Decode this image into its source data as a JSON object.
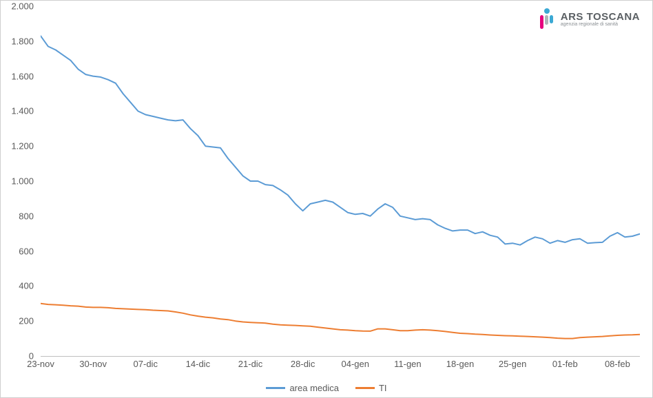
{
  "chart": {
    "type": "line",
    "background_color": "#ffffff",
    "border_color": "#cfcfcf",
    "grid_color": "#bfbfbf",
    "text_color": "#595959",
    "font_family": "Arial",
    "axis_fontsize": 13,
    "legend_fontsize": 13,
    "ylim": [
      0,
      2000
    ],
    "ytick_step": 200,
    "yticks": [
      "0",
      "200",
      "400",
      "600",
      "800",
      "1.000",
      "1.200",
      "1.400",
      "1.600",
      "1.800",
      "2.000"
    ],
    "xticks": [
      {
        "label": "23-nov",
        "index": 0
      },
      {
        "label": "30-nov",
        "index": 7
      },
      {
        "label": "07-dic",
        "index": 14
      },
      {
        "label": "14-dic",
        "index": 21
      },
      {
        "label": "21-dic",
        "index": 28
      },
      {
        "label": "28-dic",
        "index": 35
      },
      {
        "label": "04-gen",
        "index": 42
      },
      {
        "label": "11-gen",
        "index": 49
      },
      {
        "label": "18-gen",
        "index": 56
      },
      {
        "label": "25-gen",
        "index": 63
      },
      {
        "label": "01-feb",
        "index": 70
      },
      {
        "label": "08-feb",
        "index": 77
      }
    ],
    "n_points": 81,
    "series": [
      {
        "name": "area medica",
        "label": "area medica",
        "color": "#5b9bd5",
        "line_width": 2,
        "values": [
          1830,
          1770,
          1750,
          1720,
          1690,
          1640,
          1610,
          1600,
          1595,
          1580,
          1560,
          1500,
          1450,
          1400,
          1380,
          1370,
          1360,
          1350,
          1345,
          1350,
          1300,
          1260,
          1200,
          1195,
          1190,
          1130,
          1080,
          1030,
          1000,
          1000,
          980,
          975,
          950,
          920,
          870,
          830,
          870,
          880,
          890,
          880,
          850,
          820,
          810,
          815,
          800,
          840,
          870,
          850,
          800,
          790,
          780,
          785,
          780,
          750,
          730,
          715,
          720,
          720,
          700,
          710,
          690,
          680,
          640,
          645,
          635,
          660,
          680,
          670,
          645,
          660,
          650,
          665,
          670,
          645,
          648,
          650,
          685,
          705,
          680,
          685,
          698
        ]
      },
      {
        "name": "TI",
        "label": "TI",
        "color": "#ed7d31",
        "line_width": 2,
        "values": [
          300,
          295,
          293,
          290,
          287,
          285,
          280,
          278,
          278,
          276,
          272,
          270,
          268,
          266,
          265,
          262,
          260,
          258,
          252,
          245,
          235,
          228,
          222,
          218,
          212,
          208,
          200,
          195,
          192,
          190,
          188,
          182,
          178,
          176,
          175,
          172,
          170,
          165,
          160,
          155,
          150,
          148,
          145,
          143,
          142,
          155,
          155,
          150,
          145,
          145,
          148,
          150,
          148,
          145,
          140,
          135,
          130,
          128,
          125,
          123,
          120,
          118,
          116,
          115,
          113,
          112,
          110,
          108,
          105,
          102,
          100,
          100,
          105,
          108,
          110,
          112,
          115,
          118,
          120,
          121,
          123
        ]
      }
    ],
    "legend_items": [
      {
        "label": "area medica",
        "color": "#5b9bd5"
      },
      {
        "label": "TI",
        "color": "#ed7d31"
      }
    ]
  },
  "logo": {
    "title": "ARS TOSCANA",
    "subtitle": "agenzia regionale di sanità",
    "dot_color": "#3ba9d4",
    "bar1_color": "#e6007e",
    "bar2_color": "#b0b4b8",
    "bar3_color": "#3ba9d4"
  }
}
